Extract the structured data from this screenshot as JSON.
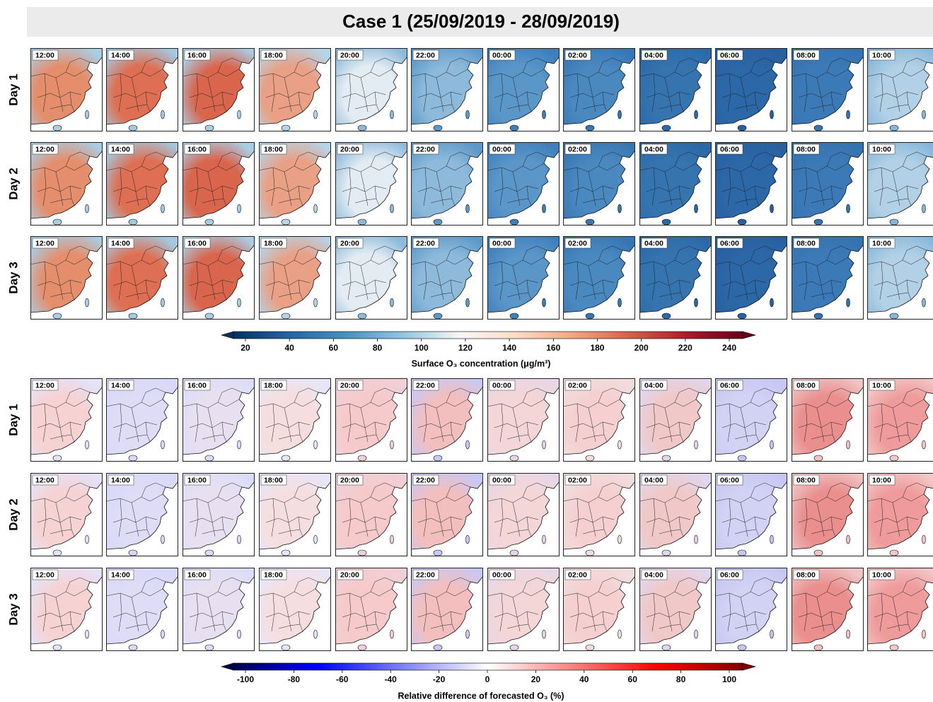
{
  "title": "Case 1 (25/09/2019 - 28/09/2019)",
  "blocks": [
    {
      "rows": [
        "Day 1",
        "Day 2",
        "Day 3"
      ],
      "times": [
        "12:00",
        "14:00",
        "16:00",
        "18:00",
        "20:00",
        "22:00",
        "00:00",
        "02:00",
        "04:00",
        "06:00",
        "08:00",
        "10:00"
      ],
      "colorbar": {
        "ticks": [
          20,
          40,
          60,
          80,
          100,
          120,
          140,
          160,
          180,
          200,
          220,
          240
        ],
        "label": "Surface O₃ concentration (μg/m³)",
        "colors": [
          "#053061",
          "#2166ac",
          "#4393c3",
          "#92c5de",
          "#f7f7f7",
          "#fddbc7",
          "#f4a582",
          "#d6604d",
          "#b2182b",
          "#67001f"
        ]
      }
    },
    {
      "rows": [
        "Day 1",
        "Day 2",
        "Day 3"
      ],
      "times": [
        "12:00",
        "14:00",
        "16:00",
        "18:00",
        "20:00",
        "22:00",
        "00:00",
        "02:00",
        "04:00",
        "06:00",
        "08:00",
        "10:00"
      ],
      "colorbar": {
        "ticks": [
          -100,
          -80,
          -60,
          -40,
          -20,
          0,
          20,
          40,
          60,
          80,
          100
        ],
        "label": "Relative difference of forecasted O₃ (%)",
        "colors": [
          "#00004c",
          "#0000ff",
          "#8080ff",
          "#ffffff",
          "#ff8080",
          "#ff0000",
          "#800000"
        ]
      }
    }
  ]
}
